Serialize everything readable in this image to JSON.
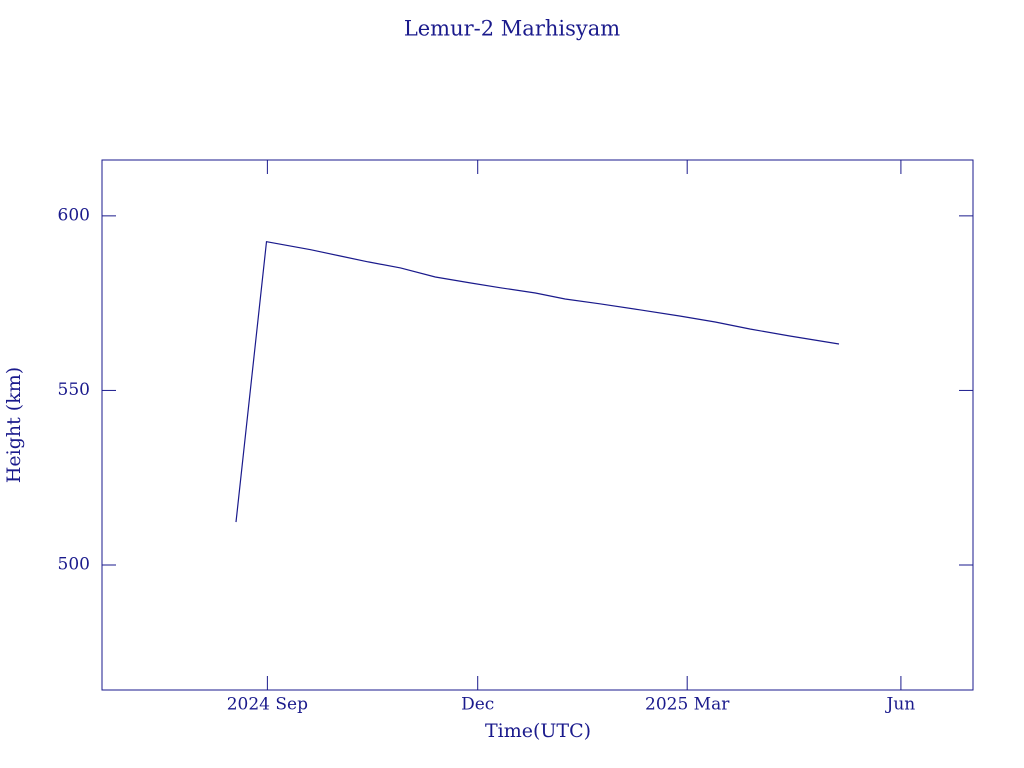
{
  "chart_data": {
    "type": "line",
    "title": "Lemur-2 Marhisyam",
    "x_label": "Time(UTC)",
    "y_label": "Height (km)",
    "xlim": [
      2024.472,
      2025.499
    ],
    "xticks": [
      {
        "value": 2024.667,
        "label": "2024 Sep"
      },
      {
        "value": 2024.915,
        "label": "Dec"
      },
      {
        "value": 2025.162,
        "label": "2025 Mar"
      },
      {
        "value": 2025.414,
        "label": "Jun"
      }
    ],
    "ylim": [
      464.2,
      616
    ],
    "yticks": [
      500,
      550,
      600
    ],
    "grid": false,
    "series": [
      {
        "color": "#1a1a8c",
        "x": [
          2024.63,
          2024.666,
          2024.718,
          2024.753,
          2024.786,
          2024.824,
          2024.865,
          2024.906,
          2024.942,
          2024.983,
          2025.018,
          2025.059,
          2025.106,
          2025.154,
          2025.195,
          2025.236,
          2025.283,
          2025.341
        ],
        "values": [
          512.3,
          592.6,
          590.3,
          588.5,
          586.8,
          585.1,
          582.5,
          580.8,
          579.4,
          577.9,
          576.2,
          574.8,
          573.1,
          571.3,
          569.6,
          567.6,
          565.6,
          563.3
        ]
      }
    ]
  }
}
